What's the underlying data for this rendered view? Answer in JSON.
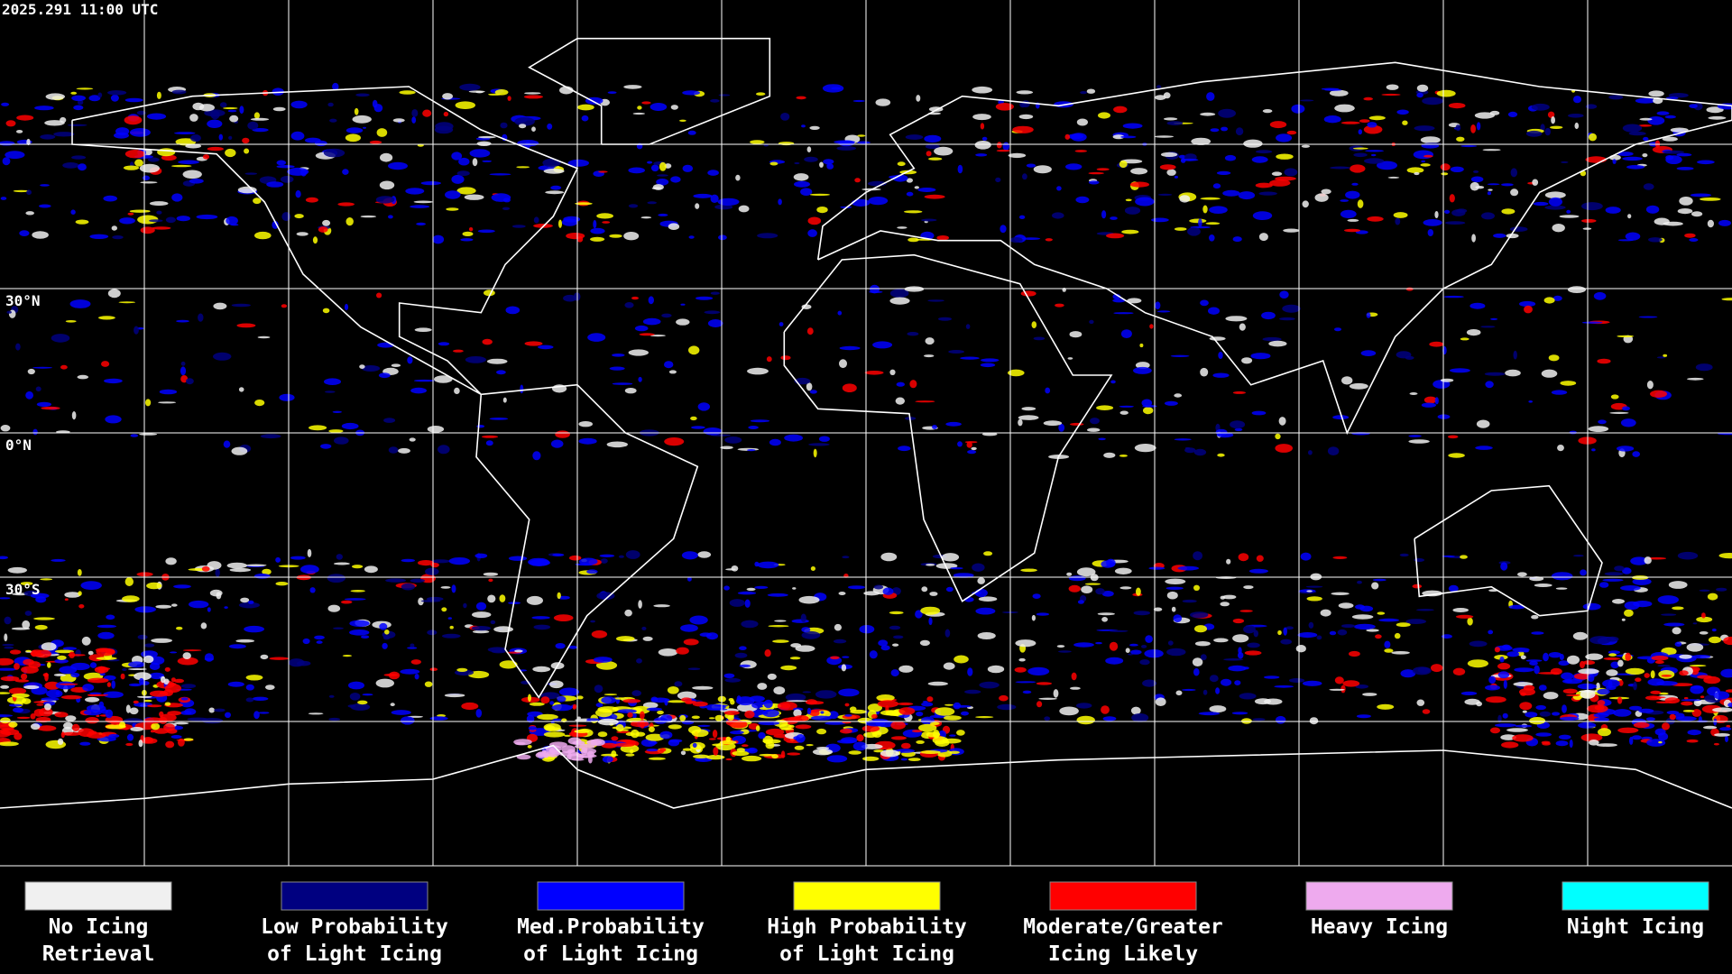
{
  "header": {
    "timestamp": "2025.291 11:00 UTC"
  },
  "map": {
    "lat_labels": [
      "30°N",
      "0°N",
      "30°S"
    ]
  },
  "legend": [
    {
      "label": [
        "No Icing",
        "Retrieval"
      ],
      "color": "#f0f0f0"
    },
    {
      "label": [
        "Low Probability",
        "of Light Icing"
      ],
      "color": "#000080"
    },
    {
      "label": [
        "Med.Probability",
        "of Light Icing"
      ],
      "color": "#0000ff"
    },
    {
      "label": [
        "High Probability",
        "of Light Icing"
      ],
      "color": "#ffff00"
    },
    {
      "label": [
        "Moderate/Greater",
        "Icing Likely"
      ],
      "color": "#ff0000"
    },
    {
      "label": [
        "Heavy Icing"
      ],
      "color": "#eeaaee"
    },
    {
      "label": [
        "Night Icing"
      ],
      "color": "#00ffff"
    }
  ]
}
